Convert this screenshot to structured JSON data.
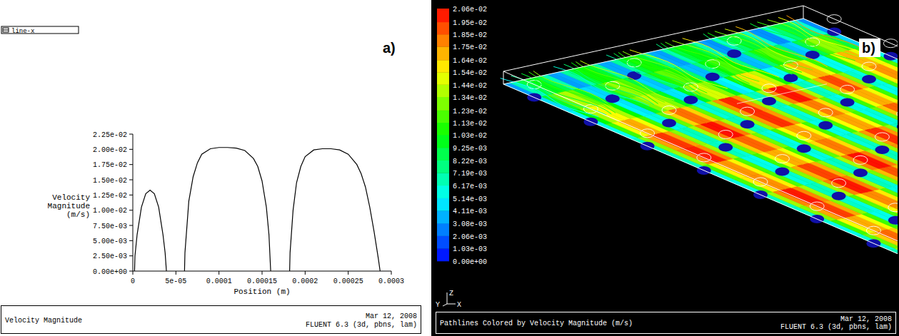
{
  "chart_data": [
    {
      "type": "line",
      "panel_label": "a)",
      "title": "Velocity Magnitude",
      "footer": [
        "Mar 12, 2008",
        "FLUENT 6.3 (3d, pbns, lam)"
      ],
      "x_label": "Position (m)",
      "y_label": "Velocity Magnitude (m/s)",
      "legend": "top-left",
      "x": [
        2e-06,
        2.5e-06,
        5e-06,
        1e-05,
        1.5e-05,
        2e-05,
        2.5e-05,
        3e-05,
        3.5e-05,
        3.75e-05,
        3.9e-05,
        5e-05,
        6e-05,
        6.05e-05,
        6.5e-05,
        7e-05,
        7.5e-05,
        8e-05,
        9e-05,
        0.0001,
        0.00011,
        0.00012,
        0.00013,
        0.00014,
        0.000145,
        0.00015,
        0.000155,
        0.000158,
        0.00016,
        0.00017,
        0.000182,
        0.0001825,
        0.000186,
        0.00019,
        0.000195,
        0.0002,
        0.00021,
        0.00022,
        0.00023,
        0.00024,
        0.00025,
        0.00026,
        0.000265,
        0.00027,
        0.000275,
        0.00028,
        0.000285,
        0.000287
      ],
      "series": [
        {
          "name": "line-x",
          "color": "#000000",
          "values": [
            0,
            0.0025,
            0.006,
            0.0105,
            0.0127,
            0.0133,
            0.0127,
            0.0105,
            0.006,
            0.003,
            0,
            null,
            0,
            0.003,
            0.0115,
            0.0155,
            0.0178,
            0.0192,
            0.0201,
            0.0203,
            0.0203,
            0.0202,
            0.0198,
            0.0185,
            0.0172,
            0.0148,
            0.0105,
            0.006,
            0,
            null,
            0,
            0.003,
            0.01,
            0.0145,
            0.0172,
            0.0188,
            0.0199,
            0.0201,
            0.0201,
            0.0199,
            0.0192,
            0.0175,
            0.016,
            0.0138,
            0.0105,
            0.0065,
            0.002,
            0
          ]
        }
      ],
      "xlim": [
        0,
        0.0003
      ],
      "xticks": [
        0,
        {
          "value": 5e-05,
          "label": "5e-05"
        },
        0.0001,
        0.00015,
        0.0002,
        0.00025,
        0.0003
      ],
      "ylim": [
        0,
        0.0225
      ],
      "yticks": [
        {
          "value": 0,
          "label": "0.00e+00"
        },
        {
          "value": 0.0025,
          "label": "2.50e-03"
        },
        {
          "value": 0.005,
          "label": "5.00e-03"
        },
        {
          "value": 0.0075,
          "label": "7.50e-03"
        },
        {
          "value": 0.01,
          "label": "1.00e-02"
        },
        {
          "value": 0.0125,
          "label": "1.25e-02"
        },
        {
          "value": 0.015,
          "label": "1.50e-02"
        },
        {
          "value": 0.0175,
          "label": "1.75e-02"
        },
        {
          "value": 0.02,
          "label": "2.00e-02"
        },
        {
          "value": 0.0225,
          "label": "2.25e-02"
        }
      ]
    },
    {
      "type": "contour",
      "panel_label": "b)",
      "title": "Pathlines Colored by Velocity Magnitude (m/s)",
      "footer": [
        "Mar 12, 2008",
        "FLUENT 6.3 (3d, pbns, lam)"
      ],
      "axis_labels": [
        "Z",
        "Y",
        "X"
      ],
      "colorbar": {
        "range": [
          0,
          0.0206
        ],
        "ticks": [
          {
            "value": 0,
            "label": "0.00e+00"
          },
          {
            "value": 0.00103,
            "label": "1.03e-03"
          },
          {
            "value": 0.00206,
            "label": "2.06e-03"
          },
          {
            "value": 0.00308,
            "label": "3.08e-03"
          },
          {
            "value": 0.00411,
            "label": "4.11e-03"
          },
          {
            "value": 0.00514,
            "label": "5.14e-03"
          },
          {
            "value": 0.00617,
            "label": "6.17e-03"
          },
          {
            "value": 0.00719,
            "label": "7.19e-03"
          },
          {
            "value": 0.00822,
            "label": "8.22e-03"
          },
          {
            "value": 0.00925,
            "label": "9.25e-03"
          },
          {
            "value": 0.0103,
            "label": "1.03e-02"
          },
          {
            "value": 0.0113,
            "label": "1.13e-02"
          },
          {
            "value": 0.0123,
            "label": "1.23e-02"
          },
          {
            "value": 0.0134,
            "label": "1.34e-02"
          },
          {
            "value": 0.0144,
            "label": "1.44e-02"
          },
          {
            "value": 0.0154,
            "label": "1.54e-02"
          },
          {
            "value": 0.0164,
            "label": "1.64e-02"
          },
          {
            "value": 0.0175,
            "label": "1.75e-02"
          },
          {
            "value": 0.0185,
            "label": "1.85e-02"
          },
          {
            "value": 0.0195,
            "label": "1.95e-02"
          },
          {
            "value": 0.0206,
            "label": "2.06e-02"
          }
        ]
      }
    }
  ]
}
